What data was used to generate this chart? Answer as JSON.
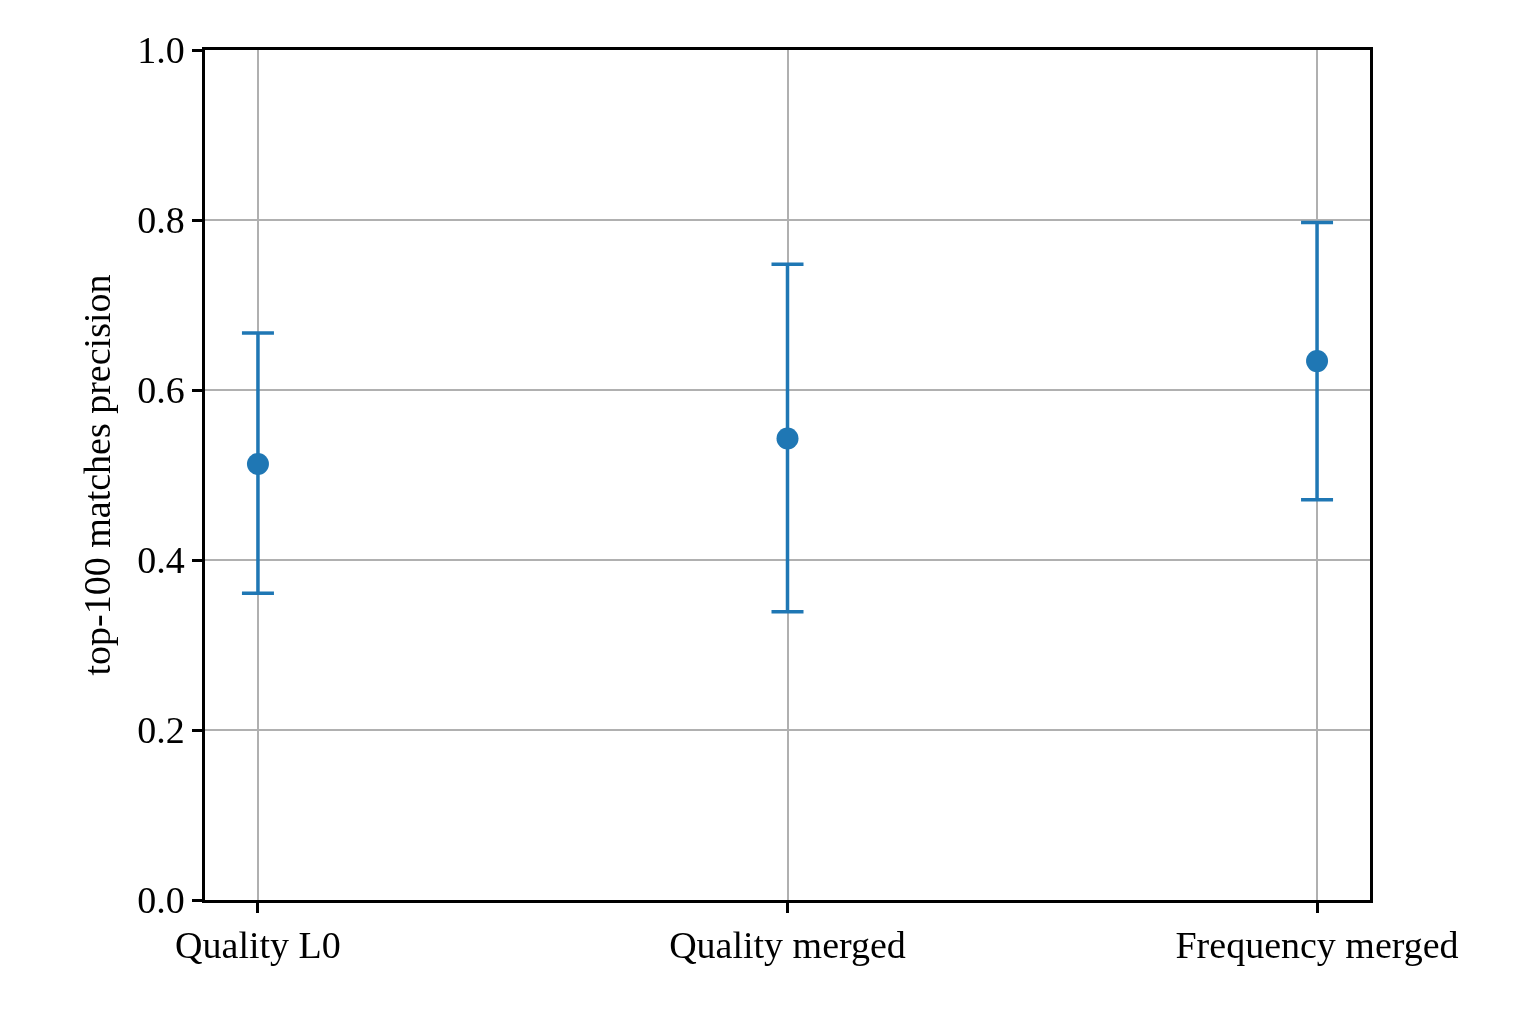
{
  "chart_data": {
    "type": "scatter",
    "ylabel": "top-100 matches precision",
    "categories": [
      "Quality L0",
      "Quality merged",
      "Frequency merged"
    ],
    "values": [
      0.513,
      0.543,
      0.634
    ],
    "errors": [
      [
        0.361,
        0.667
      ],
      [
        0.339,
        0.748
      ],
      [
        0.471,
        0.797
      ]
    ],
    "color": "#1f77b4",
    "marker": "circle",
    "ylim": [
      0,
      1
    ],
    "yticks": [
      {
        "value": 0,
        "label": "0.0"
      },
      0.2,
      0.4,
      0.6,
      0.8,
      {
        "value": 1,
        "label": "1.0"
      }
    ],
    "grid": true
  }
}
